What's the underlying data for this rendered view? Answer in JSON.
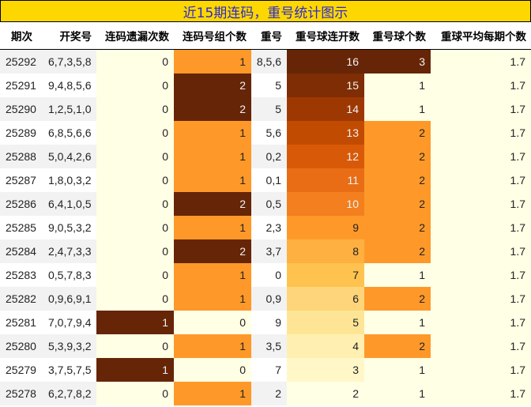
{
  "title": "近15期连码，重号统计图示",
  "columns": [
    "期次",
    "开奖号",
    "连码遗漏次数",
    "连码号组个数",
    "重号",
    "重号球连开数",
    "重号球个数",
    "重球平均每期个数"
  ],
  "colors": {
    "title_bg": "#ffd700",
    "title_text": "#2a2ad0",
    "low": "#ffffe5",
    "max": "#662506",
    "mid_orange": "#fe9929",
    "gradient_ylorbr": {
      "16": "#662506",
      "15": "#7e2d04",
      "14": "#9e3803",
      "13": "#c24b02",
      "12": "#d85a08",
      "11": "#e86d14",
      "10": "#f37f1e",
      "9": "#fe9929",
      "8": "#feb040",
      "7": "#fec34f",
      "6": "#fed57a",
      "5": "#fee596",
      "4": "#fff0b1",
      "3": "#fff7c7",
      "2": "#ffffe5"
    }
  },
  "rows": [
    {
      "issue": "25292",
      "numbers": "6,7,3,5,8",
      "lianma_miss": "0",
      "lianma_groups": "1",
      "repeat": "8,5,6",
      "repeat_streak": "16",
      "repeat_count": "3",
      "avg": "1.7"
    },
    {
      "issue": "25291",
      "numbers": "9,4,8,5,6",
      "lianma_miss": "0",
      "lianma_groups": "2",
      "repeat": "5",
      "repeat_streak": "15",
      "repeat_count": "1",
      "avg": "1.7"
    },
    {
      "issue": "25290",
      "numbers": "1,2,5,1,0",
      "lianma_miss": "0",
      "lianma_groups": "2",
      "repeat": "5",
      "repeat_streak": "14",
      "repeat_count": "1",
      "avg": "1.7"
    },
    {
      "issue": "25289",
      "numbers": "6,8,5,6,6",
      "lianma_miss": "0",
      "lianma_groups": "1",
      "repeat": "5,6",
      "repeat_streak": "13",
      "repeat_count": "2",
      "avg": "1.7"
    },
    {
      "issue": "25288",
      "numbers": "5,0,4,2,6",
      "lianma_miss": "0",
      "lianma_groups": "1",
      "repeat": "0,2",
      "repeat_streak": "12",
      "repeat_count": "2",
      "avg": "1.7"
    },
    {
      "issue": "25287",
      "numbers": "1,8,0,3,2",
      "lianma_miss": "0",
      "lianma_groups": "1",
      "repeat": "0,1",
      "repeat_streak": "11",
      "repeat_count": "2",
      "avg": "1.7"
    },
    {
      "issue": "25286",
      "numbers": "6,4,1,0,5",
      "lianma_miss": "0",
      "lianma_groups": "2",
      "repeat": "0,5",
      "repeat_streak": "10",
      "repeat_count": "2",
      "avg": "1.7"
    },
    {
      "issue": "25285",
      "numbers": "9,0,5,3,2",
      "lianma_miss": "0",
      "lianma_groups": "1",
      "repeat": "2,3",
      "repeat_streak": "9",
      "repeat_count": "2",
      "avg": "1.7"
    },
    {
      "issue": "25284",
      "numbers": "2,4,7,3,3",
      "lianma_miss": "0",
      "lianma_groups": "2",
      "repeat": "3,7",
      "repeat_streak": "8",
      "repeat_count": "2",
      "avg": "1.7"
    },
    {
      "issue": "25283",
      "numbers": "0,5,7,8,3",
      "lianma_miss": "0",
      "lianma_groups": "1",
      "repeat": "0",
      "repeat_streak": "7",
      "repeat_count": "1",
      "avg": "1.7"
    },
    {
      "issue": "25282",
      "numbers": "0,9,6,9,1",
      "lianma_miss": "0",
      "lianma_groups": "1",
      "repeat": "0,9",
      "repeat_streak": "6",
      "repeat_count": "2",
      "avg": "1.7"
    },
    {
      "issue": "25281",
      "numbers": "7,0,7,9,4",
      "lianma_miss": "1",
      "lianma_groups": "0",
      "repeat": "9",
      "repeat_streak": "5",
      "repeat_count": "1",
      "avg": "1.7"
    },
    {
      "issue": "25280",
      "numbers": "5,3,9,3,2",
      "lianma_miss": "0",
      "lianma_groups": "1",
      "repeat": "3,5",
      "repeat_streak": "4",
      "repeat_count": "2",
      "avg": "1.7"
    },
    {
      "issue": "25279",
      "numbers": "3,7,5,7,5",
      "lianma_miss": "1",
      "lianma_groups": "0",
      "repeat": "7",
      "repeat_streak": "3",
      "repeat_count": "1",
      "avg": "1.7"
    },
    {
      "issue": "25278",
      "numbers": "6,2,7,8,2",
      "lianma_miss": "0",
      "lianma_groups": "1",
      "repeat": "2",
      "repeat_streak": "2",
      "repeat_count": "1",
      "avg": "1.7"
    }
  ]
}
